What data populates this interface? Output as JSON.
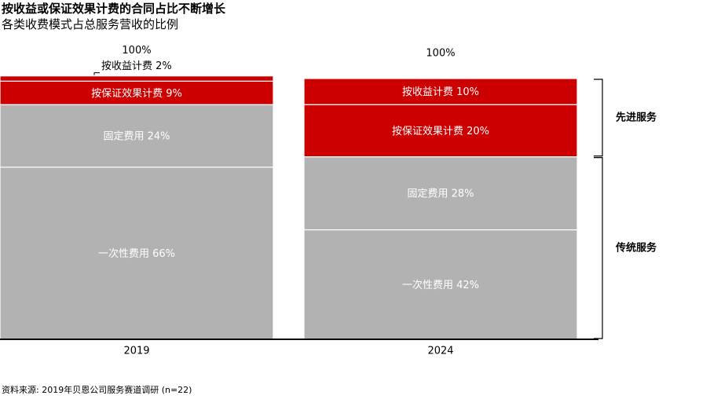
{
  "title": "按收益或保证效果计费的合同占比不断增长",
  "subtitle": "各类收费模式占总服务营收的比例",
  "source": "资料来源: 2019年贝恩公司服务赛道调研 (n=22)",
  "chart_data": {
    "type": "bar",
    "stacked": true,
    "categories": [
      "2019",
      "2024"
    ],
    "totals": [
      "100%",
      "100%"
    ],
    "series": [
      {
        "name": "一次性费用",
        "values": [
          66,
          42
        ],
        "color": "#b2b2b2"
      },
      {
        "name": "固定费用",
        "values": [
          24,
          28
        ],
        "color": "#b2b2b2"
      },
      {
        "name": "按保证效果计费",
        "values": [
          9,
          20
        ],
        "color": "#cc0000"
      },
      {
        "name": "按收益计费",
        "values": [
          2,
          10
        ],
        "color": "#cc0000"
      }
    ],
    "segment_labels": [
      [
        "一次性费用 66%",
        "固定费用 24%",
        "按保证效果计费 9%",
        "按收益计费 2%"
      ],
      [
        "一次性费用 42%",
        "固定费用 28%",
        "按保证效果计费 20%",
        "按收益计费 10%"
      ]
    ],
    "groups": [
      {
        "label": "先进服务",
        "series": [
          "按保证效果计费",
          "按收益计费"
        ]
      },
      {
        "label": "传统服务",
        "series": [
          "一次性费用",
          "固定费用"
        ]
      }
    ],
    "ylim": [
      0,
      100
    ],
    "grid": false,
    "legend": "none"
  }
}
